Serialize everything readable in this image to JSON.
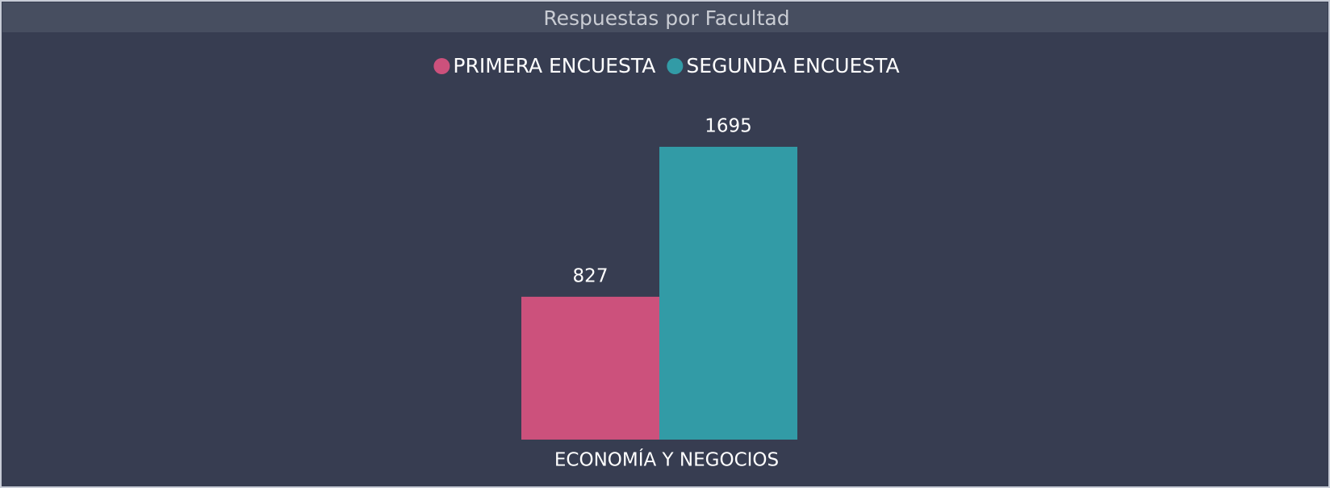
{
  "chart_data": {
    "type": "bar",
    "title": "Respuestas por Facultad",
    "categories": [
      "ECONOMÍA Y NEGOCIOS"
    ],
    "series": [
      {
        "name": "PRIMERA ENCUESTA",
        "color": "#cc517c",
        "values": [
          827
        ]
      },
      {
        "name": "SEGUNDA ENCUESTA",
        "color": "#329ba6",
        "values": [
          1695
        ]
      }
    ],
    "legend": "top"
  }
}
